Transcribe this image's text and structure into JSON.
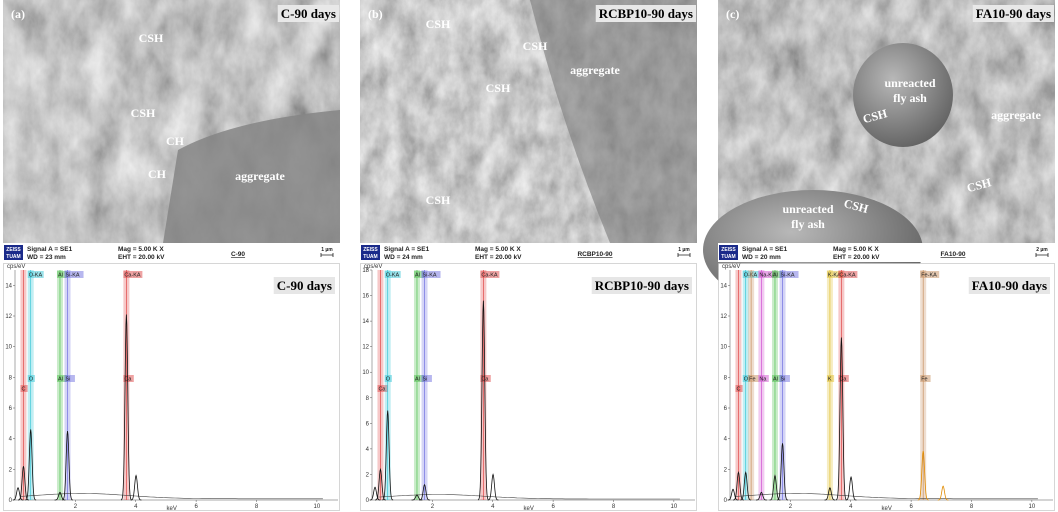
{
  "panels": [
    {
      "label": "(a)",
      "title": "C-90 days",
      "annotations": [
        "CSH",
        "CSH",
        "CH",
        "CH",
        "aggregate"
      ],
      "info": {
        "logo": "ZEISS",
        "logo_sub": "TUAM",
        "signal": "Signal A = SE1",
        "wd": "WD =  23 mm",
        "mag": "Mag =   5.00 K X",
        "eht": "EHT = 20.00 kV",
        "name": "C-90",
        "scale": "1 µm"
      },
      "spectrum": {
        "title": "C-90 days",
        "y_unit": "cps/eV",
        "x_unit": "keV",
        "xlim": [
          0,
          10.7
        ],
        "xticks": [
          2,
          4,
          6,
          8,
          10
        ],
        "ylim": [
          0,
          15
        ],
        "yticks": [
          0,
          2,
          4,
          6,
          8,
          10,
          12,
          14
        ],
        "bands": [
          {
            "mid": "C",
            "x": 0.28,
            "color": "#e04848"
          },
          {
            "top": "O-KA",
            "mid": "O",
            "x": 0.52,
            "color": "#36c6d6"
          },
          {
            "top": "Al",
            "mid": "Al",
            "x": 1.49,
            "color": "#50c050"
          },
          {
            "top": "Si-KA",
            "mid": "Si",
            "x": 1.74,
            "color": "#7070e0"
          },
          {
            "top": "Ca-KA",
            "mid": "Ca",
            "x": 3.69,
            "color": "#e04848"
          }
        ],
        "peaks": [
          {
            "x": 0.1,
            "y": 0.8
          },
          {
            "x": 0.28,
            "y": 2.2
          },
          {
            "x": 0.52,
            "y": 4.6
          },
          {
            "x": 1.49,
            "y": 0.5
          },
          {
            "x": 1.74,
            "y": 4.5
          },
          {
            "x": 3.69,
            "y": 12.1
          },
          {
            "x": 4.01,
            "y": 1.6
          }
        ]
      }
    },
    {
      "label": "(b)",
      "title": "RCBP10-90 days",
      "annotations": [
        "CSH",
        "CSH",
        "aggregate",
        "CSH",
        "CSH"
      ],
      "info": {
        "logo": "ZEISS",
        "logo_sub": "TUAM",
        "signal": "Signal A = SE1",
        "wd": "WD =  24 mm",
        "mag": "Mag =   5.00 K X",
        "eht": "EHT = 20.00 kV",
        "name": "RCBP10-90",
        "scale": "1 µm"
      },
      "spectrum": {
        "title": "RCBP10-90 days",
        "y_unit": "cps/eV",
        "x_unit": "keV",
        "xlim": [
          0,
          10.7
        ],
        "xticks": [
          2,
          4,
          6,
          8,
          10
        ],
        "ylim": [
          0,
          18
        ],
        "yticks": [
          0,
          2,
          4,
          6,
          8,
          10,
          12,
          14,
          16,
          18
        ],
        "bands": [
          {
            "mid": "Ca",
            "x": 0.28,
            "color": "#e04848"
          },
          {
            "top": "O-KA",
            "mid": "O",
            "x": 0.52,
            "color": "#36c6d6"
          },
          {
            "top": "Al",
            "mid": "Al",
            "x": 1.49,
            "color": "#50c050"
          },
          {
            "top": "Si-KA",
            "mid": "Si",
            "x": 1.74,
            "color": "#7070e0"
          },
          {
            "top": "Ca-KA",
            "mid": "Ca",
            "x": 3.69,
            "color": "#e04848"
          }
        ],
        "peaks": [
          {
            "x": 0.1,
            "y": 1.0
          },
          {
            "x": 0.28,
            "y": 2.4
          },
          {
            "x": 0.52,
            "y": 7.0
          },
          {
            "x": 1.49,
            "y": 0.4
          },
          {
            "x": 1.74,
            "y": 1.2
          },
          {
            "x": 3.69,
            "y": 15.6
          },
          {
            "x": 4.01,
            "y": 2.0
          }
        ]
      }
    },
    {
      "label": "(c)",
      "title": "FA10-90 days",
      "annotations": [
        "unreacted",
        "fly ash",
        "CSH",
        "aggregate",
        "CSH",
        "CSH",
        "unreacted",
        "fly ash"
      ],
      "info": {
        "logo": "ZEISS",
        "logo_sub": "TUAM",
        "signal": "Signal A = SE1",
        "wd": "WD =  20 mm",
        "mag": "Mag =   5.00 K X",
        "eht": "EHT = 20.00 kV",
        "name": "FA10-90",
        "scale": "2 µm"
      },
      "spectrum": {
        "title": "FA10-90 days",
        "y_unit": "cps/eV",
        "x_unit": "keV",
        "xlim": [
          0,
          10.7
        ],
        "xticks": [
          2,
          4,
          6,
          8,
          10
        ],
        "ylim": [
          0,
          15
        ],
        "yticks": [
          0,
          2,
          4,
          6,
          8,
          10,
          12,
          14
        ],
        "bands": [
          {
            "mid": "C",
            "x": 0.28,
            "color": "#e04848"
          },
          {
            "top": "O-KA",
            "mid": "O",
            "x": 0.52,
            "color": "#36c6d6"
          },
          {
            "mid": "Fe",
            "x": 0.7,
            "color": "#c89060"
          },
          {
            "top": "Na-KA",
            "mid": "Na",
            "x": 1.04,
            "color": "#d050d0"
          },
          {
            "top": "Al",
            "mid": "Al",
            "x": 1.49,
            "color": "#50c050"
          },
          {
            "top": "Si-KA",
            "mid": "Si",
            "x": 1.74,
            "color": "#7070e0"
          },
          {
            "top": "K-KA",
            "mid": "K",
            "x": 3.31,
            "color": "#e0c030"
          },
          {
            "top": "Ca-KA",
            "mid": "Ca",
            "x": 3.69,
            "color": "#e04848"
          },
          {
            "top": "Fe-KA",
            "mid": "Fe",
            "x": 6.4,
            "color": "#c89060"
          }
        ],
        "peaks": [
          {
            "x": 0.1,
            "y": 0.7
          },
          {
            "x": 0.28,
            "y": 1.8
          },
          {
            "x": 0.52,
            "y": 1.8
          },
          {
            "x": 1.04,
            "y": 0.5
          },
          {
            "x": 1.49,
            "y": 1.6
          },
          {
            "x": 1.74,
            "y": 3.7
          },
          {
            "x": 3.31,
            "y": 0.8
          },
          {
            "x": 3.69,
            "y": 10.6
          },
          {
            "x": 4.01,
            "y": 1.5
          },
          {
            "x": 6.4,
            "y": 3.2
          },
          {
            "x": 7.06,
            "y": 0.9
          }
        ]
      }
    }
  ]
}
